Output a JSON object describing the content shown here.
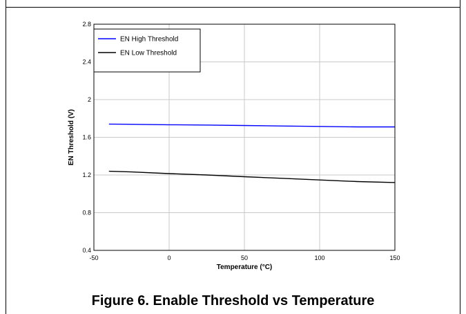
{
  "caption": "Figure 6. Enable Threshold vs Temperature",
  "chart_data": {
    "type": "line",
    "title": "",
    "xlabel": "Temperature (°C)",
    "ylabel": "EN Threshold (V)",
    "xlim": [
      -50,
      150
    ],
    "ylim": [
      0.4,
      2.8
    ],
    "xticks": [
      -50,
      0,
      50,
      100,
      150
    ],
    "yticks": [
      0.4,
      0.8,
      1.2,
      1.6,
      2,
      2.4,
      2.8
    ],
    "grid": true,
    "legend_position": "top-left",
    "series": [
      {
        "name": "EN High Threshold",
        "color": "#0000ff",
        "x": [
          -40,
          -25,
          0,
          25,
          50,
          75,
          100,
          125,
          150
        ],
        "y": [
          1.74,
          1.738,
          1.733,
          1.73,
          1.725,
          1.72,
          1.715,
          1.71,
          1.71
        ]
      },
      {
        "name": "EN Low Threshold",
        "color": "#000000",
        "x": [
          -40,
          -25,
          0,
          25,
          50,
          75,
          100,
          125,
          150
        ],
        "y": [
          1.24,
          1.232,
          1.215,
          1.2,
          1.182,
          1.165,
          1.147,
          1.13,
          1.12
        ]
      }
    ]
  }
}
